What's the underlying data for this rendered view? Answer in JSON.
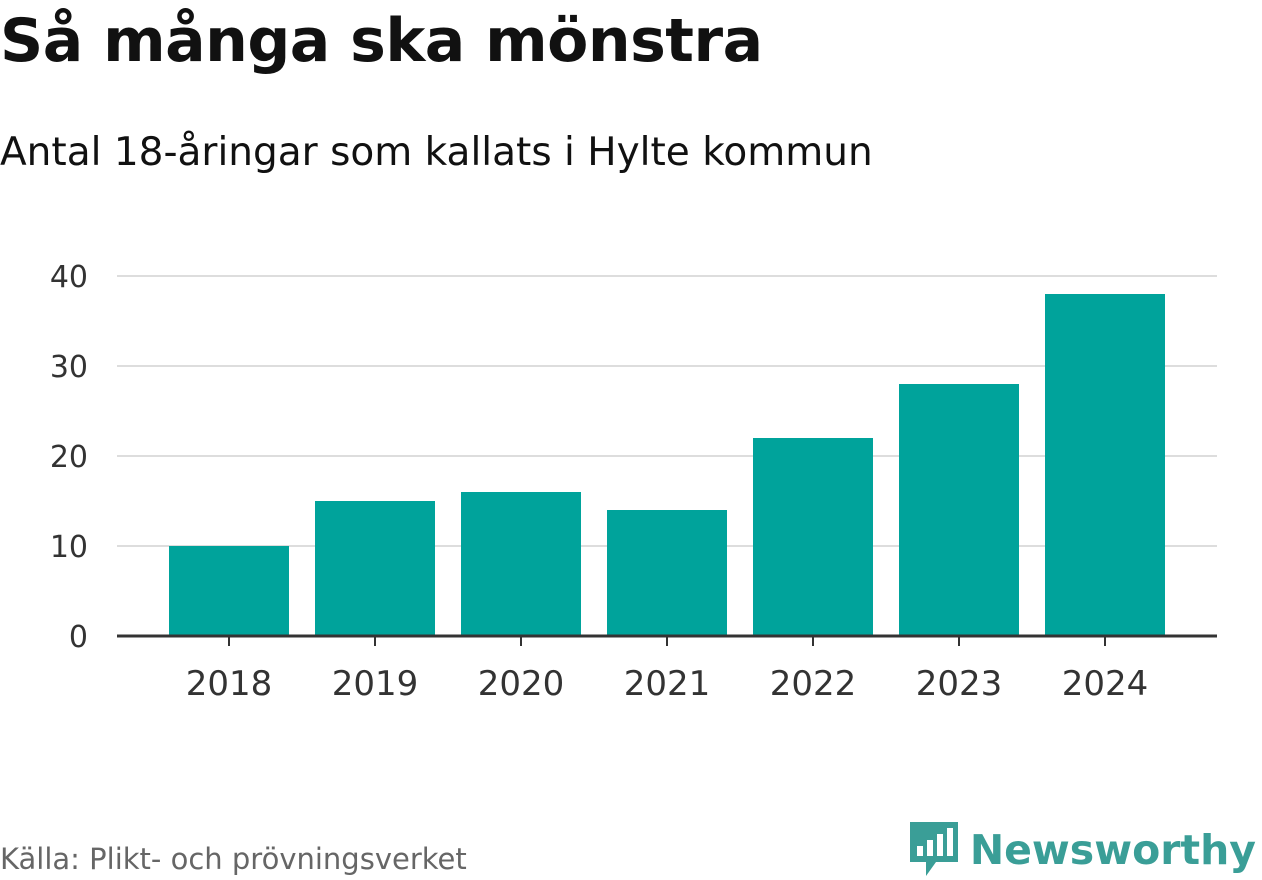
{
  "header": {
    "title": "Så många ska mönstra",
    "subtitle": "Antal 18-åringar som kallats i Hylte kommun"
  },
  "footer": {
    "source": "Källa: Plikt- och prövningsverket",
    "brand": "Newsworthy",
    "brand_icon": "bar-chart-speech-bubble-icon"
  },
  "colors": {
    "bar": "#00a39b",
    "grid": "#dddddd",
    "axis": "#333333",
    "brand": "#3a9e97"
  },
  "chart_data": {
    "type": "bar",
    "title": "Så många ska mönstra",
    "subtitle": "Antal 18-åringar som kallats i Hylte kommun",
    "categories": [
      "2018",
      "2019",
      "2020",
      "2021",
      "2022",
      "2023",
      "2024"
    ],
    "values": [
      10,
      15,
      16,
      14,
      22,
      28,
      38
    ],
    "xlabel": "",
    "ylabel": "",
    "ylim": [
      0,
      40
    ],
    "yticks": [
      0,
      10,
      20,
      30,
      40
    ],
    "grid": true,
    "legend": "none"
  }
}
